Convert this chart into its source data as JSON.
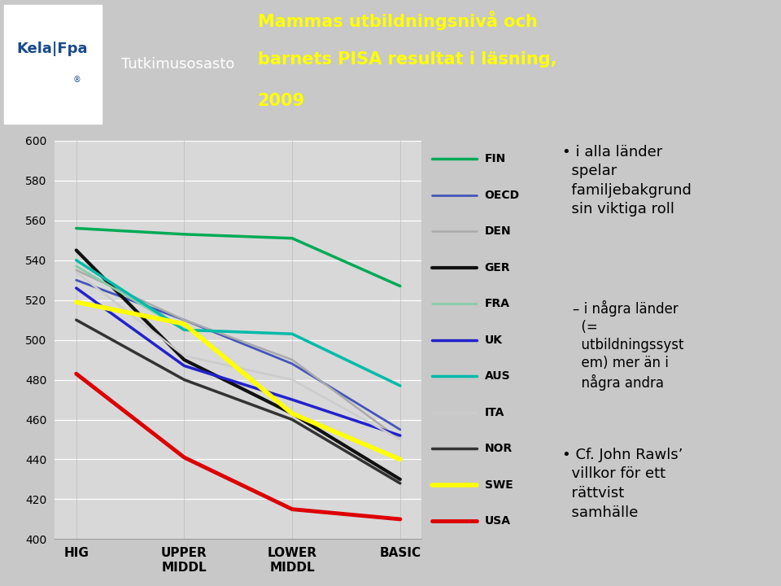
{
  "x_labels": [
    "HIG",
    "UPPER\nMIDDL",
    "LOWER\nMIDDL",
    "BASIC"
  ],
  "x_positions": [
    0,
    1,
    2,
    3
  ],
  "series": [
    {
      "name": "FIN",
      "color": "#00aa55",
      "linewidth": 2.5,
      "values": [
        556,
        553,
        551,
        527
      ]
    },
    {
      "name": "OECD",
      "color": "#4455bb",
      "linewidth": 2.0,
      "values": [
        530,
        510,
        488,
        455
      ]
    },
    {
      "name": "DEN",
      "color": "#aaaaaa",
      "linewidth": 1.8,
      "values": [
        535,
        510,
        490,
        450
      ]
    },
    {
      "name": "GER",
      "color": "#111111",
      "linewidth": 3.0,
      "values": [
        545,
        490,
        463,
        430
      ]
    },
    {
      "name": "FRA",
      "color": "#88ccaa",
      "linewidth": 2.0,
      "values": [
        537,
        505,
        503,
        477
      ]
    },
    {
      "name": "UK",
      "color": "#2222cc",
      "linewidth": 2.5,
      "values": [
        526,
        487,
        470,
        452
      ]
    },
    {
      "name": "AUS",
      "color": "#00bbaa",
      "linewidth": 2.5,
      "values": [
        540,
        505,
        503,
        477
      ]
    },
    {
      "name": "ITA",
      "color": "#cccccc",
      "linewidth": 1.8,
      "values": [
        534,
        492,
        480,
        450
      ]
    },
    {
      "name": "NOR",
      "color": "#333333",
      "linewidth": 2.5,
      "values": [
        510,
        480,
        460,
        428
      ]
    },
    {
      "name": "SWE",
      "color": "#ffff00",
      "linewidth": 4.0,
      "values": [
        519,
        508,
        463,
        440
      ]
    },
    {
      "name": "USA",
      "color": "#dd0000",
      "linewidth": 3.5,
      "values": [
        483,
        441,
        415,
        410
      ]
    }
  ],
  "ylim": [
    400,
    600
  ],
  "yticks": [
    400,
    420,
    440,
    460,
    480,
    500,
    520,
    540,
    560,
    580,
    600
  ],
  "header_color": "#1a4a8a",
  "logo_text": "Kela|Fpa",
  "subtitle_text": "Tutkimusosasto",
  "title_line1": "Mammas utbildningsnivå och",
  "title_line2": "barnets PISA resultat i läsning,",
  "title_line3": "2009",
  "bg_color": "#d8d8d8",
  "outer_bg": "#c8c8c8"
}
